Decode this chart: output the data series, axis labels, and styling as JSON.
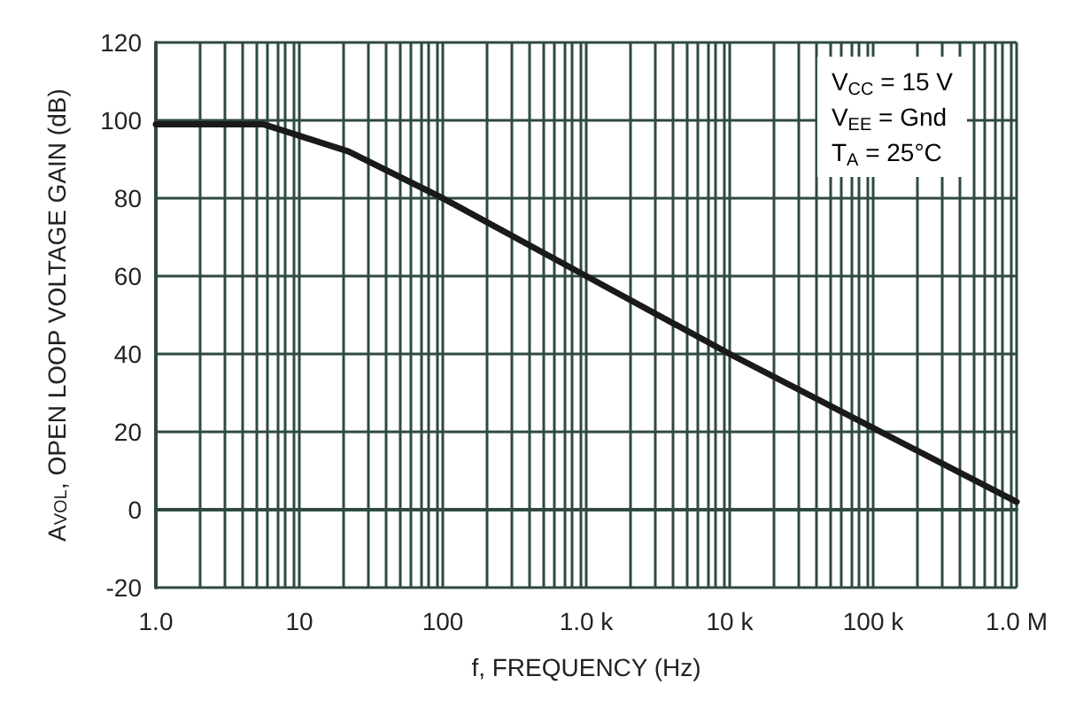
{
  "chart_data": {
    "type": "line",
    "xlabel": "f, FREQUENCY (Hz)",
    "ylabel": "A$_{VOL}$, OPEN LOOP VOLTAGE GAIN (dB)",
    "annotations": [
      "V$_{CC}$ = 15 V",
      "V$_{EE}$ = Gnd",
      "T$_{A}$ = 25°C"
    ],
    "x": [
      1,
      5.6,
      22,
      100,
      1000,
      10000,
      100000,
      1000000
    ],
    "series": [
      {
        "color": "#1a1a1a",
        "values": [
          99,
          99,
          92,
          80,
          60,
          40,
          21,
          2
        ]
      }
    ],
    "log": "x",
    "grid": true,
    "marker": "none",
    "line_style": "solid",
    "xlim": [
      1,
      1000000
    ],
    "ylim": [
      -20,
      120
    ],
    "yticks": [
      -20,
      0,
      20,
      40,
      60,
      80,
      100,
      120
    ],
    "xticks": [
      {
        "value": 1,
        "label": "1.0"
      },
      {
        "value": 2,
        "label": null
      },
      {
        "value": 3,
        "label": null
      },
      {
        "value": 4,
        "label": null
      },
      {
        "value": 5,
        "label": null
      },
      {
        "value": 6,
        "label": null
      },
      {
        "value": 7,
        "label": null
      },
      {
        "value": 8,
        "label": null
      },
      {
        "value": 9,
        "label": null
      },
      10,
      {
        "value": 20,
        "label": null
      },
      {
        "value": 30,
        "label": null
      },
      {
        "value": 40,
        "label": null
      },
      {
        "value": 50,
        "label": null
      },
      {
        "value": 60,
        "label": null
      },
      {
        "value": 70,
        "label": null
      },
      {
        "value": 80,
        "label": null
      },
      {
        "value": 90,
        "label": null
      },
      100,
      {
        "value": 200,
        "label": null
      },
      {
        "value": 300,
        "label": null
      },
      {
        "value": 400,
        "label": null
      },
      {
        "value": 500,
        "label": null
      },
      {
        "value": 600,
        "label": null
      },
      {
        "value": 700,
        "label": null
      },
      {
        "value": 800,
        "label": null
      },
      {
        "value": 900,
        "label": null
      },
      {
        "value": 1000,
        "label": "1.0 k"
      },
      {
        "value": 2000,
        "label": null
      },
      {
        "value": 3000,
        "label": null
      },
      {
        "value": 4000,
        "label": null
      },
      {
        "value": 5000,
        "label": null
      },
      {
        "value": 6000,
        "label": null
      },
      {
        "value": 7000,
        "label": null
      },
      {
        "value": 8000,
        "label": null
      },
      {
        "value": 9000,
        "label": null
      },
      {
        "value": 10000,
        "label": "10 k"
      },
      {
        "value": 20000,
        "label": null
      },
      {
        "value": 30000,
        "label": null
      },
      {
        "value": 40000,
        "label": null
      },
      {
        "value": 50000,
        "label": null
      },
      {
        "value": 60000,
        "label": null
      },
      {
        "value": 70000,
        "label": null
      },
      {
        "value": 80000,
        "label": null
      },
      {
        "value": 90000,
        "label": null
      },
      {
        "value": 100000,
        "label": "100 k"
      },
      {
        "value": 200000,
        "label": null
      },
      {
        "value": 300000,
        "label": null
      },
      {
        "value": 400000,
        "label": null
      },
      {
        "value": 500000,
        "label": null
      },
      {
        "value": 600000,
        "label": null
      },
      {
        "value": 700000,
        "label": null
      },
      {
        "value": 800000,
        "label": null
      },
      {
        "value": 900000,
        "label": null
      },
      {
        "value": 1000000,
        "label": "1.0 M"
      }
    ]
  }
}
